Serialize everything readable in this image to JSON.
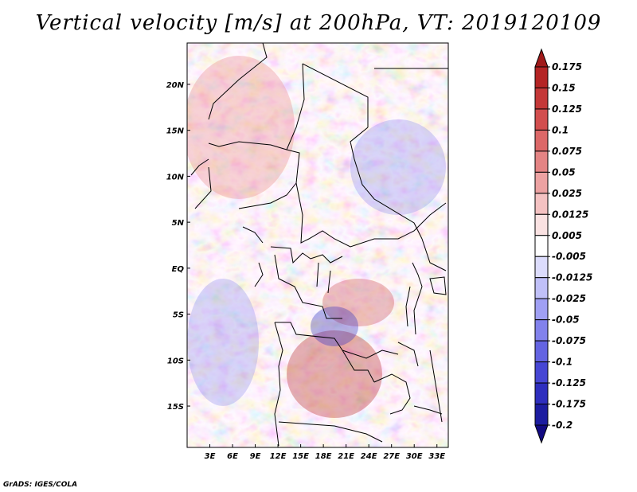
{
  "title": "Vertical velocity [m/s] at 200hPa, VT: 2019120109",
  "credit": "GrADS: IGES/COLA",
  "map": {
    "lon_range": [
      0,
      34.5
    ],
    "lat_range": [
      -19.5,
      24.5
    ],
    "x_ticks": [
      {
        "value": 3,
        "label": "3E"
      },
      {
        "value": 6,
        "label": "6E"
      },
      {
        "value": 9,
        "label": "9E"
      },
      {
        "value": 12,
        "label": "12E"
      },
      {
        "value": 15,
        "label": "15E"
      },
      {
        "value": 18,
        "label": "18E"
      },
      {
        "value": 21,
        "label": "21E"
      },
      {
        "value": 24,
        "label": "24E"
      },
      {
        "value": 27,
        "label": "27E"
      },
      {
        "value": 30,
        "label": "30E"
      },
      {
        "value": 33,
        "label": "33E"
      }
    ],
    "y_ticks": [
      {
        "value": 20,
        "label": "20N"
      },
      {
        "value": 15,
        "label": "15N"
      },
      {
        "value": 10,
        "label": "10N"
      },
      {
        "value": 5,
        "label": "5N"
      },
      {
        "value": 0,
        "label": "EQ"
      },
      {
        "value": -5,
        "label": "5S"
      },
      {
        "value": -10,
        "label": "10S"
      },
      {
        "value": -15,
        "label": "15S"
      }
    ]
  },
  "colorbar": {
    "levels": [
      "0.175",
      "0.15",
      "0.125",
      "0.1",
      "0.075",
      "0.05",
      "0.025",
      "0.0125",
      "0.005",
      "-0.005",
      "-0.0125",
      "-0.025",
      "-0.05",
      "-0.075",
      "-0.1",
      "-0.125",
      "-0.175",
      "-0.2"
    ],
    "colors": [
      "#a01a1a",
      "#b42424",
      "#c43838",
      "#d24e4e",
      "#dc6868",
      "#e48484",
      "#eca2a2",
      "#f4c2c2",
      "#fae2e2",
      "#ffffff",
      "#dcdcfc",
      "#c0c0f8",
      "#a0a0f4",
      "#8282ec",
      "#6464e2",
      "#4646d4",
      "#2e2ebe",
      "#1c1ca0",
      "#120a82"
    ]
  }
}
